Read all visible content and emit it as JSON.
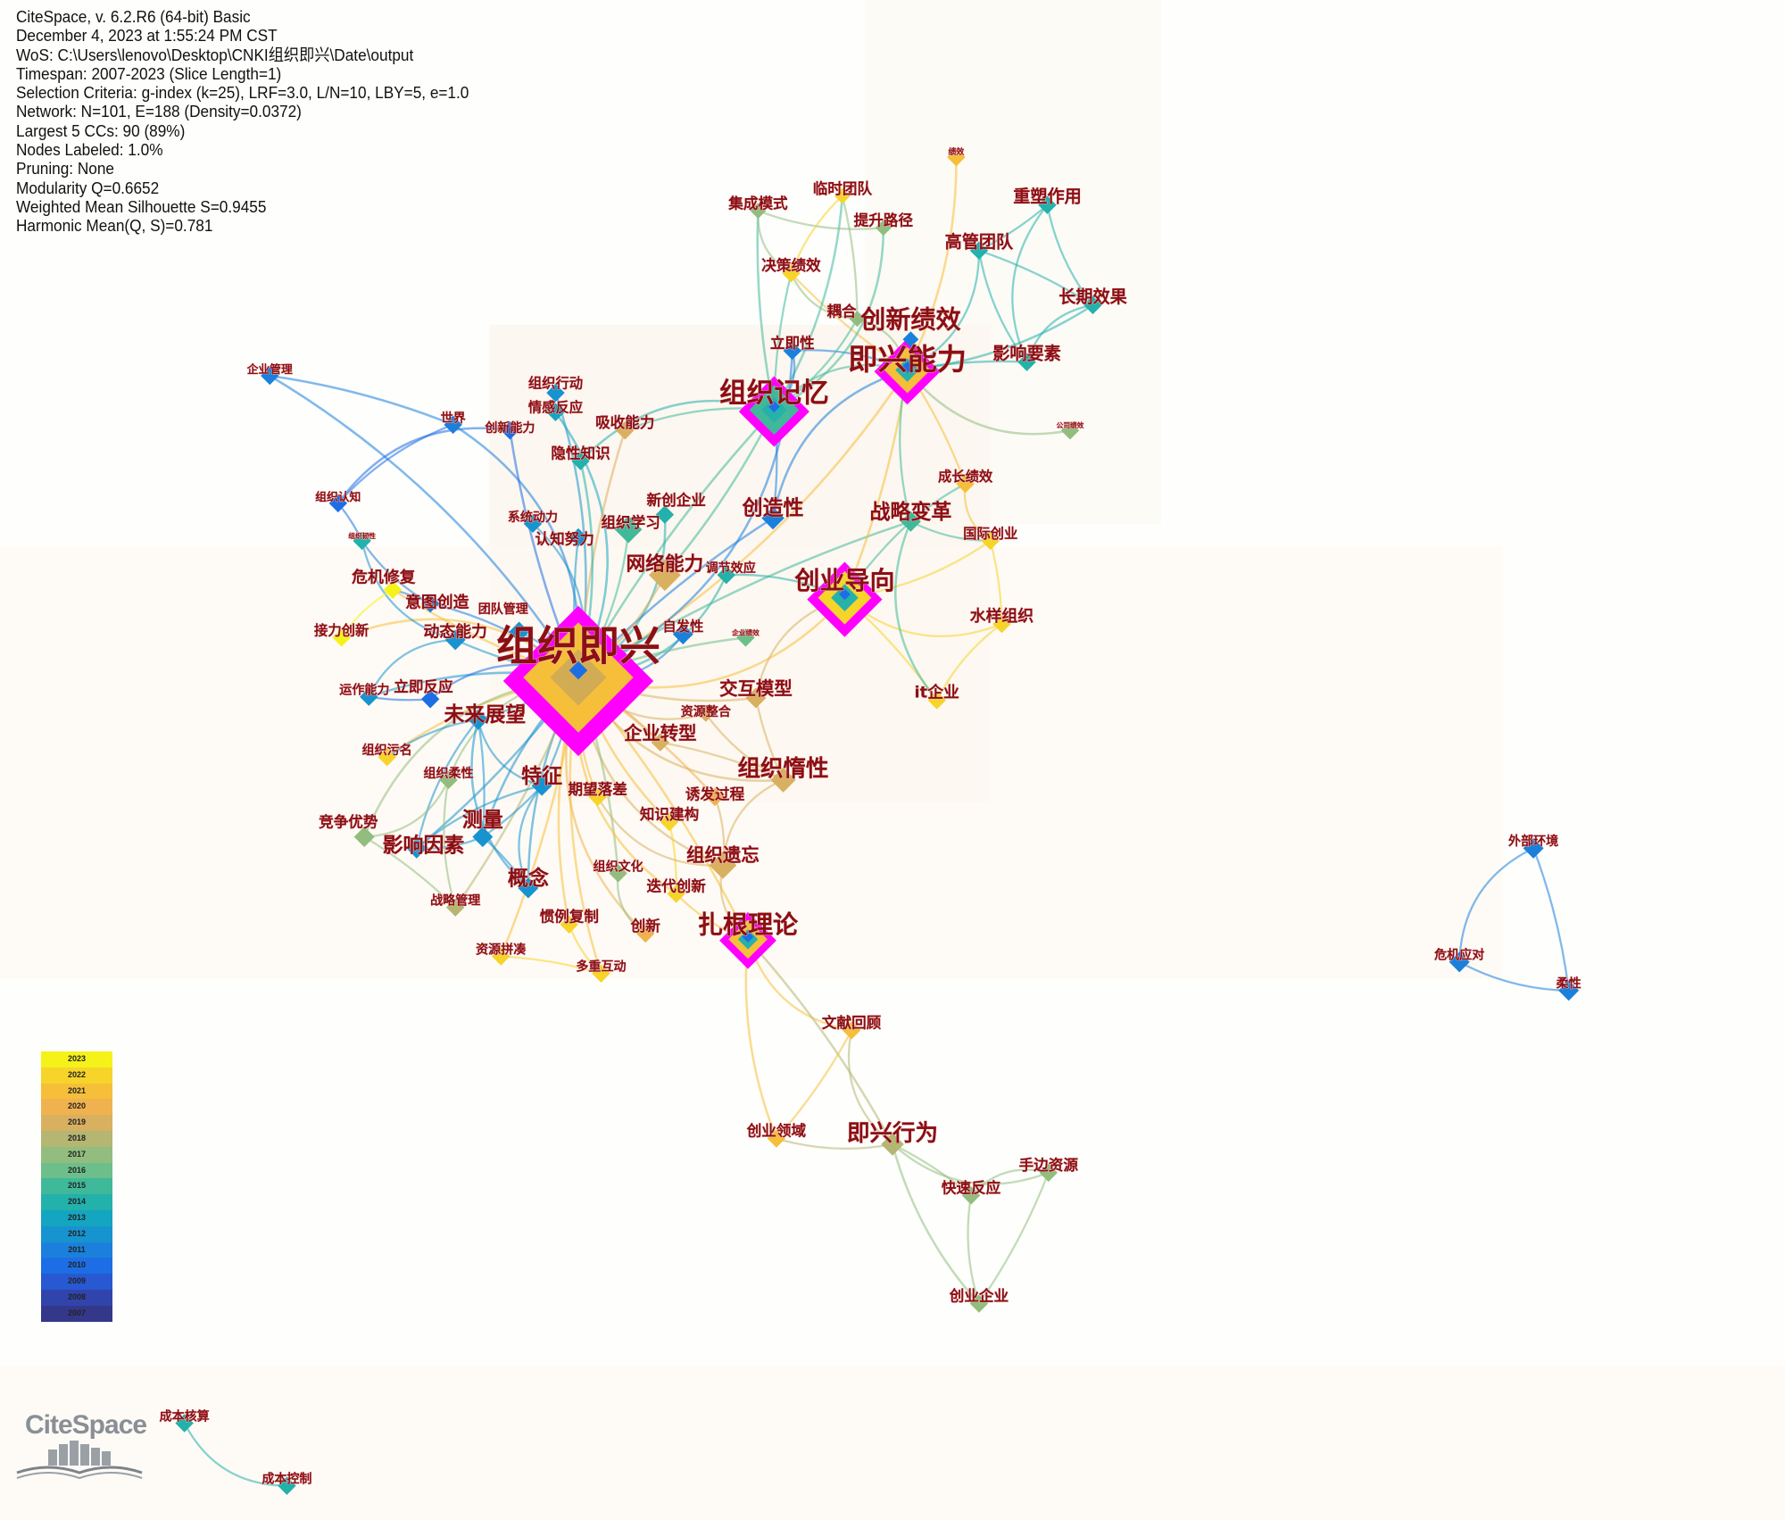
{
  "info": {
    "lines": [
      "CiteSpace, v. 6.2.R6 (64-bit) Basic",
      "December 4, 2023 at 1:55:24 PM CST",
      "WoS: C:\\Users\\lenovo\\Desktop\\CNKI组织即兴\\Date\\output",
      "Timespan: 2007-2023 (Slice Length=1)",
      "Selection Criteria: g-index (k=25), LRF=3.0, L/N=10, LBY=5, e=1.0",
      "Network: N=101, E=188 (Density=0.0372)",
      "Largest 5 CCs: 90 (89%)",
      "Nodes Labeled: 1.0%",
      "Pruning: None",
      "Modularity Q=0.6652",
      "Weighted Mean Silhouette S=0.9455",
      "Harmonic Mean(Q, S)=0.781"
    ]
  },
  "legend": {
    "years": [
      {
        "year": "2023",
        "color": "#f5f21a"
      },
      {
        "year": "2022",
        "color": "#f6d42a"
      },
      {
        "year": "2021",
        "color": "#f5bf3a"
      },
      {
        "year": "2020",
        "color": "#f0b24e"
      },
      {
        "year": "2019",
        "color": "#d8b060"
      },
      {
        "year": "2018",
        "color": "#b4b672"
      },
      {
        "year": "2017",
        "color": "#92bd7e"
      },
      {
        "year": "2016",
        "color": "#6cbf8a"
      },
      {
        "year": "2015",
        "color": "#3fb99a"
      },
      {
        "year": "2014",
        "color": "#22b1ab"
      },
      {
        "year": "2013",
        "color": "#14a5c0"
      },
      {
        "year": "2012",
        "color": "#1793d0"
      },
      {
        "year": "2011",
        "color": "#1a80dc"
      },
      {
        "year": "2010",
        "color": "#1d6ee4"
      },
      {
        "year": "2009",
        "color": "#2858d2"
      },
      {
        "year": "2008",
        "color": "#3144ac"
      },
      {
        "year": "2007",
        "color": "#34388a"
      }
    ]
  },
  "logo": {
    "text": "CiteSpace"
  },
  "highlight_ring_color": "#ff00ff",
  "label_color": "#8b0f14",
  "nodes": [
    {
      "label": "组织即兴",
      "year": 2021,
      "ring": true
    },
    {
      "label": "即兴能力",
      "year": 2021,
      "ring": true
    },
    {
      "label": "创新绩效",
      "year": 2011
    },
    {
      "label": "组织记忆",
      "year": 2015,
      "ring": true
    },
    {
      "label": "创业导向",
      "year": 2022,
      "ring": true
    },
    {
      "label": "扎根理论",
      "year": 2021,
      "ring": true
    },
    {
      "label": "绩效",
      "year": 2021
    },
    {
      "label": "集成模式",
      "year": 2017
    },
    {
      "label": "临时团队",
      "year": 2022
    },
    {
      "label": "提升路径",
      "year": 2017
    },
    {
      "label": "决策绩效",
      "year": 2022
    },
    {
      "label": "耦合",
      "year": 2017
    },
    {
      "label": "立即性",
      "year": 2011
    },
    {
      "label": "重塑作用",
      "year": 2014
    },
    {
      "label": "高管团队",
      "year": 2014
    },
    {
      "label": "长期效果",
      "year": 2014
    },
    {
      "label": "影响要素",
      "year": 2014
    },
    {
      "label": "公司绩效",
      "year": 2017
    },
    {
      "label": "企业管理",
      "year": 2011
    },
    {
      "label": "世界",
      "year": 2011
    },
    {
      "label": "创新能力",
      "year": 2010
    },
    {
      "label": "组织行动",
      "year": 2012
    },
    {
      "label": "情感反应",
      "year": 2013
    },
    {
      "label": "吸收能力",
      "year": 2019
    },
    {
      "label": "隐性知识",
      "year": 2014
    },
    {
      "label": "组织认知",
      "year": 2010
    },
    {
      "label": "组织韧性",
      "year": 2014
    },
    {
      "label": "系统动力",
      "year": 2012
    },
    {
      "label": "认知努力",
      "year": 2012
    },
    {
      "label": "组织学习",
      "year": 2015
    },
    {
      "label": "新创企业",
      "year": 2014
    },
    {
      "label": "创造性",
      "year": 2011
    },
    {
      "label": "网络能力",
      "year": 2019
    },
    {
      "label": "调节效应",
      "year": 2014
    },
    {
      "label": "成长绩效",
      "year": 2021
    },
    {
      "label": "战略变革",
      "year": 2015
    },
    {
      "label": "国际创业",
      "year": 2022
    },
    {
      "label": "水样组织",
      "year": 2022
    },
    {
      "label": "it企业",
      "year": 2022
    },
    {
      "label": "危机修复",
      "year": 2023
    },
    {
      "label": "意图创造",
      "year": 2011
    },
    {
      "label": "接力创新",
      "year": 2023
    },
    {
      "label": "动态能力",
      "year": 2012
    },
    {
      "label": "团队管理",
      "year": 2012
    },
    {
      "label": "自发性",
      "year": 2011
    },
    {
      "label": "企业绩效",
      "year": 2016
    },
    {
      "label": "运作能力",
      "year": 2012
    },
    {
      "label": "立即反应",
      "year": 2010
    },
    {
      "label": "未来展望",
      "year": 2012
    },
    {
      "label": "交互模型",
      "year": 2019
    },
    {
      "label": "资源整合",
      "year": 2019
    },
    {
      "label": "企业转型",
      "year": 2019
    },
    {
      "label": "组织污名",
      "year": 2022
    },
    {
      "label": "组织柔性",
      "year": 2017
    },
    {
      "label": "特征",
      "year": 2012
    },
    {
      "label": "期望落差",
      "year": 2022
    },
    {
      "label": "组织惰性",
      "year": 2019
    },
    {
      "label": "诱发过程",
      "year": 2020
    },
    {
      "label": "知识建构",
      "year": 2022
    },
    {
      "label": "竞争优势",
      "year": 2017
    },
    {
      "label": "影响因素",
      "year": 2012
    },
    {
      "label": "测量",
      "year": 2012
    },
    {
      "label": "组织遗忘",
      "year": 2019
    },
    {
      "label": "组织文化",
      "year": 2017
    },
    {
      "label": "概念",
      "year": 2012
    },
    {
      "label": "迭代创新",
      "year": 2022
    },
    {
      "label": "战略管理",
      "year": 2018
    },
    {
      "label": "惯例复制",
      "year": 2022
    },
    {
      "label": "创新",
      "year": 2020
    },
    {
      "label": "资源拼凑",
      "year": 2022
    },
    {
      "label": "多重互动",
      "year": 2022
    },
    {
      "label": "文献回顾",
      "year": 2021
    },
    {
      "label": "创业领域",
      "year": 2021
    },
    {
      "label": "即兴行为",
      "year": 2018
    },
    {
      "label": "手边资源",
      "year": 2017
    },
    {
      "label": "快速反应",
      "year": 2017
    },
    {
      "label": "创业企业",
      "year": 2017
    },
    {
      "label": "外部环境",
      "year": 2011
    },
    {
      "label": "危机应对",
      "year": 2011
    },
    {
      "label": "柔性",
      "year": 2011
    },
    {
      "label": "成本核算",
      "year": 2014
    },
    {
      "label": "成本控制",
      "year": 2014
    }
  ],
  "edges": [
    [
      "组织即兴",
      "组织记忆"
    ],
    [
      "组织即兴",
      "即兴能力"
    ],
    [
      "组织即兴",
      "创业导向"
    ],
    [
      "组织即兴",
      "扎根理论"
    ],
    [
      "组织即兴",
      "企业管理"
    ],
    [
      "组织即兴",
      "世界"
    ],
    [
      "组织即兴",
      "创新能力"
    ],
    [
      "组织即兴",
      "组织行动"
    ],
    [
      "组织即兴",
      "情感反应"
    ],
    [
      "组织即兴",
      "吸收能力"
    ],
    [
      "组织即兴",
      "隐性知识"
    ],
    [
      "组织即兴",
      "系统动力"
    ],
    [
      "组织即兴",
      "认知努力"
    ],
    [
      "组织即兴",
      "组织学习"
    ],
    [
      "组织即兴",
      "新创企业"
    ],
    [
      "组织即兴",
      "创造性"
    ],
    [
      "组织即兴",
      "网络能力"
    ],
    [
      "组织即兴",
      "调节效应"
    ],
    [
      "组织即兴",
      "危机修复"
    ],
    [
      "组织即兴",
      "意图创造"
    ],
    [
      "组织即兴",
      "接力创新"
    ],
    [
      "组织即兴",
      "动态能力"
    ],
    [
      "组织即兴",
      "团队管理"
    ],
    [
      "组织即兴",
      "自发性"
    ],
    [
      "组织即兴",
      "企业绩效"
    ],
    [
      "组织即兴",
      "运作能力"
    ],
    [
      "组织即兴",
      "立即反应"
    ],
    [
      "组织即兴",
      "未来展望"
    ],
    [
      "组织即兴",
      "交互模型"
    ],
    [
      "组织即兴",
      "资源整合"
    ],
    [
      "组织即兴",
      "企业转型"
    ],
    [
      "组织即兴",
      "组织污名"
    ],
    [
      "组织即兴",
      "组织柔性"
    ],
    [
      "组织即兴",
      "特征"
    ],
    [
      "组织即兴",
      "期望落差"
    ],
    [
      "组织即兴",
      "组织惰性"
    ],
    [
      "组织即兴",
      "诱发过程"
    ],
    [
      "组织即兴",
      "知识建构"
    ],
    [
      "组织即兴",
      "竞争优势"
    ],
    [
      "组织即兴",
      "影响因素"
    ],
    [
      "组织即兴",
      "测量"
    ],
    [
      "组织即兴",
      "组织遗忘"
    ],
    [
      "组织即兴",
      "组织文化"
    ],
    [
      "组织即兴",
      "概念"
    ],
    [
      "组织即兴",
      "迭代创新"
    ],
    [
      "组织即兴",
      "战略管理"
    ],
    [
      "组织即兴",
      "惯例复制"
    ],
    [
      "组织即兴",
      "创新"
    ],
    [
      "组织即兴",
      "资源拼凑"
    ],
    [
      "组织即兴",
      "多重互动"
    ],
    [
      "组织即兴",
      "立即性"
    ],
    [
      "组织即兴",
      "战略变革"
    ],
    [
      "即兴能力",
      "创新绩效"
    ],
    [
      "即兴能力",
      "组织记忆"
    ],
    [
      "即兴能力",
      "创业导向"
    ],
    [
      "即兴能力",
      "绩效"
    ],
    [
      "即兴能力",
      "耦合"
    ],
    [
      "即兴能力",
      "决策绩效"
    ],
    [
      "即兴能力",
      "立即性"
    ],
    [
      "即兴能力",
      "高管团队"
    ],
    [
      "即兴能力",
      "影响要素"
    ],
    [
      "即兴能力",
      "长期效果"
    ],
    [
      "即兴能力",
      "公司绩效"
    ],
    [
      "即兴能力",
      "成长绩效"
    ],
    [
      "即兴能力",
      "战略变革"
    ],
    [
      "即兴能力",
      "创造性"
    ],
    [
      "组织记忆",
      "集成模式"
    ],
    [
      "组织记忆",
      "临时团队"
    ],
    [
      "组织记忆",
      "提升路径"
    ],
    [
      "组织记忆",
      "决策绩效"
    ],
    [
      "组织记忆",
      "耦合"
    ],
    [
      "组织记忆",
      "立即性"
    ],
    [
      "组织记忆",
      "创造性"
    ],
    [
      "组织记忆",
      "吸收能力"
    ],
    [
      "组织记忆",
      "隐性知识"
    ],
    [
      "组织记忆",
      "网络能力"
    ],
    [
      "集成模式",
      "提升路径"
    ],
    [
      "集成模式",
      "决策绩效"
    ],
    [
      "临时团队",
      "耦合"
    ],
    [
      "临时团队",
      "决策绩效"
    ],
    [
      "决策绩效",
      "耦合"
    ],
    [
      "重塑作用",
      "高管团队"
    ],
    [
      "重塑作用",
      "长期效果"
    ],
    [
      "重塑作用",
      "影响要素"
    ],
    [
      "高管团队",
      "长期效果"
    ],
    [
      "高管团队",
      "影响要素"
    ],
    [
      "长期效果",
      "影响要素"
    ],
    [
      "创业导向",
      "战略变革"
    ],
    [
      "创业导向",
      "国际创业"
    ],
    [
      "创业导向",
      "水样组织"
    ],
    [
      "创业导向",
      "it企业"
    ],
    [
      "创业导向",
      "调节效应"
    ],
    [
      "创业导向",
      "交互模型"
    ],
    [
      "战略变革",
      "成长绩效"
    ],
    [
      "战略变革",
      "国际创业"
    ],
    [
      "战略变革",
      "it企业"
    ],
    [
      "国际创业",
      "水样组织"
    ],
    [
      "水样组织",
      "it企业"
    ],
    [
      "成长绩效",
      "国际创业"
    ],
    [
      "企业管理",
      "世界"
    ],
    [
      "世界",
      "组织认知"
    ],
    [
      "创新能力",
      "组织认知"
    ],
    [
      "组织认知",
      "组织韧性"
    ],
    [
      "组织韧性",
      "意图创造"
    ],
    [
      "组织韧性",
      "动态能力"
    ],
    [
      "危机修复",
      "意图创造"
    ],
    [
      "危机修复",
      "接力创新"
    ],
    [
      "动态能力",
      "运作能力"
    ],
    [
      "立即反应",
      "运作能力"
    ],
    [
      "未来展望",
      "组织污名"
    ],
    [
      "未来展望",
      "特征"
    ],
    [
      "未来展望",
      "测量"
    ],
    [
      "未来展望",
      "影响因素"
    ],
    [
      "未来展望",
      "概念"
    ],
    [
      "特征",
      "测量"
    ],
    [
      "特征",
      "影响因素"
    ],
    [
      "特征",
      "概念"
    ],
    [
      "测量",
      "概念"
    ],
    [
      "影响因素",
      "测量"
    ],
    [
      "竞争优势",
      "组织柔性"
    ],
    [
      "竞争优势",
      "战略管理"
    ],
    [
      "组织柔性",
      "战略管理"
    ],
    [
      "组织惰性",
      "组织遗忘"
    ],
    [
      "组织惰性",
      "交互模型"
    ],
    [
      "组织遗忘",
      "诱发过程"
    ],
    [
      "组织遗忘",
      "扎根理论"
    ],
    [
      "知识建构",
      "迭代创新"
    ],
    [
      "迭代创新",
      "扎根理论"
    ],
    [
      "期望落差",
      "组织遗忘"
    ],
    [
      "企业转型",
      "组织惰性"
    ],
    [
      "资源整合",
      "组织惰性"
    ],
    [
      "组织文化",
      "创新"
    ],
    [
      "资源拼凑",
      "多重互动"
    ],
    [
      "惯例复制",
      "多重互动"
    ],
    [
      "扎根理论",
      "文献回顾"
    ],
    [
      "扎根理论",
      "即兴行为"
    ],
    [
      "扎根理论",
      "创业领域"
    ],
    [
      "文献回顾",
      "即兴行为"
    ],
    [
      "文献回顾",
      "创业领域"
    ],
    [
      "创业领域",
      "即兴行为"
    ],
    [
      "即兴行为",
      "手边资源"
    ],
    [
      "即兴行为",
      "快速反应"
    ],
    [
      "即兴行为",
      "创业企业"
    ],
    [
      "手边资源",
      "快速反应"
    ],
    [
      "手边资源",
      "创业企业"
    ],
    [
      "快速反应",
      "创业企业"
    ],
    [
      "外部环境",
      "危机应对"
    ],
    [
      "外部环境",
      "柔性"
    ],
    [
      "危机应对",
      "柔性"
    ],
    [
      "成本核算",
      "成本控制"
    ]
  ]
}
